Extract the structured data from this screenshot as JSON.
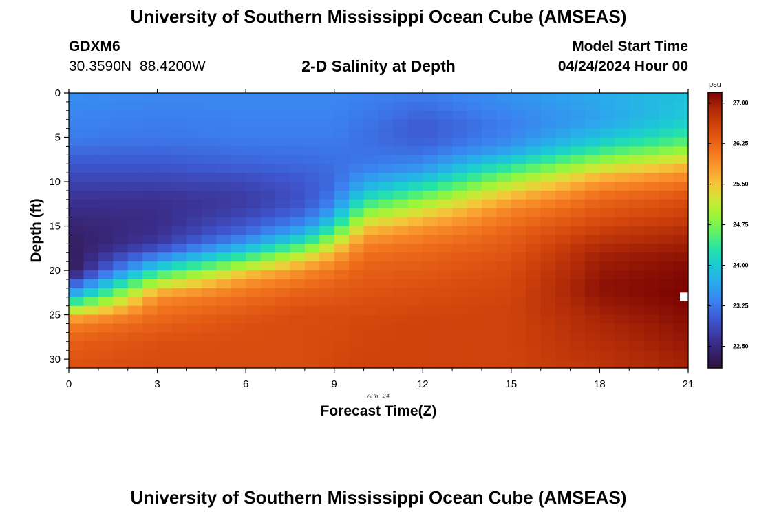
{
  "header": {
    "title": "University of Southern Mississippi Ocean Cube (AMSEAS)",
    "station_name": "GDXM6",
    "station_coords": "30.3590N  88.4200W",
    "plot_title": "2-D Salinity at Depth",
    "model_label": "Model Start Time",
    "model_time": "04/24/2024 Hour 00"
  },
  "footer": {
    "title": "University of Southern Mississippi Ocean Cube (AMSEAS)"
  },
  "chart_data": {
    "type": "heatmap",
    "title": "2-D Salinity at Depth",
    "xlabel": "Forecast Time(Z)",
    "ylabel": "Depth (ft)",
    "x_range": [
      0,
      21
    ],
    "y_range": [
      0,
      31
    ],
    "x_ticks": [
      0,
      3,
      6,
      9,
      12,
      15,
      18,
      21
    ],
    "x_tick_labels": [
      "0",
      "3",
      "6",
      "9",
      "12",
      "15",
      "18",
      "21"
    ],
    "y_ticks": [
      0,
      5,
      10,
      15,
      20,
      25,
      30
    ],
    "y_tick_labels": [
      "0",
      "5",
      "10",
      "15",
      "20",
      "25",
      "30"
    ],
    "date_label": "APR 24",
    "colorbar": {
      "unit": "psu",
      "range": [
        22.1,
        27.2
      ],
      "tick_values": [
        22.5,
        23.25,
        24.0,
        24.75,
        25.5,
        26.25,
        27.0
      ],
      "tick_labels": [
        "22.50",
        "23.25",
        "24.00",
        "24.75",
        "25.50",
        "26.25",
        "27.00"
      ]
    },
    "time_grid_step_hours": 0.5,
    "depth_grid_step_ft": 1,
    "control_points": {
      "times": [
        0,
        3,
        6,
        8,
        9,
        10,
        12,
        15,
        18,
        21
      ],
      "series": [
        {
          "time": 0,
          "profile": [
            [
              0,
              23.45
            ],
            [
              5,
              23.3
            ],
            [
              8,
              23.0
            ],
            [
              10,
              22.8
            ],
            [
              13,
              22.55
            ],
            [
              16,
              22.35
            ],
            [
              20,
              22.2
            ],
            [
              22,
              23.2
            ],
            [
              23,
              23.8
            ],
            [
              24,
              24.6
            ],
            [
              25,
              25.5
            ],
            [
              26,
              26.0
            ],
            [
              28,
              26.3
            ],
            [
              31,
              26.45
            ]
          ]
        },
        {
          "time": 3,
          "profile": [
            [
              0,
              23.4
            ],
            [
              5,
              23.25
            ],
            [
              8,
              23.0
            ],
            [
              10,
              22.8
            ],
            [
              12,
              22.6
            ],
            [
              15,
              22.55
            ],
            [
              17,
              22.7
            ],
            [
              18,
              23.1
            ],
            [
              19,
              23.6
            ],
            [
              20,
              24.2
            ],
            [
              21,
              24.8
            ],
            [
              22,
              25.4
            ],
            [
              23,
              25.9
            ],
            [
              25,
              26.2
            ],
            [
              28,
              26.45
            ],
            [
              31,
              26.5
            ]
          ]
        },
        {
          "time": 6,
          "profile": [
            [
              0,
              23.4
            ],
            [
              5,
              23.3
            ],
            [
              8,
              23.1
            ],
            [
              10,
              22.85
            ],
            [
              12,
              22.7
            ],
            [
              14,
              22.85
            ],
            [
              16,
              23.2
            ],
            [
              17,
              23.6
            ],
            [
              18,
              24.1
            ],
            [
              19,
              24.7
            ],
            [
              20,
              25.3
            ],
            [
              21,
              25.8
            ],
            [
              23,
              26.2
            ],
            [
              26,
              26.45
            ],
            [
              31,
              26.5
            ]
          ]
        },
        {
          "time": 8,
          "profile": [
            [
              0,
              23.4
            ],
            [
              5,
              23.3
            ],
            [
              8,
              23.15
            ],
            [
              10,
              23.0
            ],
            [
              12,
              22.95
            ],
            [
              14,
              23.2
            ],
            [
              15,
              23.5
            ],
            [
              16,
              23.9
            ],
            [
              17,
              24.4
            ],
            [
              18,
              25.0
            ],
            [
              19,
              25.5
            ],
            [
              20,
              25.9
            ],
            [
              22,
              26.25
            ],
            [
              25,
              26.5
            ],
            [
              31,
              26.5
            ]
          ]
        },
        {
          "time": 9,
          "profile": [
            [
              0,
              23.4
            ],
            [
              5,
              23.3
            ],
            [
              8,
              23.2
            ],
            [
              10,
              23.15
            ],
            [
              12,
              23.3
            ],
            [
              13,
              23.5
            ],
            [
              14,
              23.8
            ],
            [
              15,
              24.2
            ],
            [
              16,
              24.7
            ],
            [
              17,
              25.2
            ],
            [
              18,
              25.6
            ],
            [
              19,
              25.9
            ],
            [
              21,
              26.25
            ],
            [
              25,
              26.5
            ],
            [
              31,
              26.55
            ]
          ]
        },
        {
          "time": 10,
          "profile": [
            [
              0,
              23.35
            ],
            [
              5,
              23.2
            ],
            [
              8,
              23.25
            ],
            [
              10,
              23.6
            ],
            [
              11,
              23.9
            ],
            [
              12,
              24.2
            ],
            [
              13,
              24.6
            ],
            [
              14,
              25.0
            ],
            [
              15,
              25.4
            ],
            [
              16,
              25.75
            ],
            [
              17,
              26.0
            ],
            [
              19,
              26.25
            ],
            [
              22,
              26.4
            ],
            [
              26,
              26.55
            ],
            [
              31,
              26.6
            ]
          ]
        },
        {
          "time": 12,
          "profile": [
            [
              0,
              23.3
            ],
            [
              4,
              23.0
            ],
            [
              6,
              23.1
            ],
            [
              8,
              23.4
            ],
            [
              9,
              23.65
            ],
            [
              10,
              24.0
            ],
            [
              11,
              24.4
            ],
            [
              12,
              24.8
            ],
            [
              13,
              25.2
            ],
            [
              14,
              25.5
            ],
            [
              15,
              25.8
            ],
            [
              16,
              26.0
            ],
            [
              18,
              26.25
            ],
            [
              22,
              26.45
            ],
            [
              26,
              26.6
            ],
            [
              31,
              26.6
            ]
          ]
        },
        {
          "time": 15,
          "profile": [
            [
              0,
              23.5
            ],
            [
              4,
              23.3
            ],
            [
              6,
              23.5
            ],
            [
              7,
              23.8
            ],
            [
              8,
              24.2
            ],
            [
              9,
              24.6
            ],
            [
              10,
              25.0
            ],
            [
              11,
              25.4
            ],
            [
              12,
              25.7
            ],
            [
              13,
              25.95
            ],
            [
              14,
              26.1
            ],
            [
              16,
              26.3
            ],
            [
              20,
              26.5
            ],
            [
              24,
              26.6
            ],
            [
              31,
              26.6
            ]
          ]
        },
        {
          "time": 18,
          "profile": [
            [
              0,
              23.7
            ],
            [
              3,
              23.6
            ],
            [
              5,
              23.9
            ],
            [
              6,
              24.2
            ],
            [
              7,
              24.6
            ],
            [
              8,
              25.0
            ],
            [
              9,
              25.45
            ],
            [
              10,
              25.8
            ],
            [
              11,
              26.05
            ],
            [
              12,
              26.25
            ],
            [
              14,
              26.45
            ],
            [
              16,
              26.7
            ],
            [
              18,
              26.95
            ],
            [
              22,
              27.1
            ],
            [
              26,
              26.9
            ],
            [
              31,
              26.75
            ]
          ]
        },
        {
          "time": 21,
          "profile": [
            [
              0,
              23.9
            ],
            [
              3,
              24.0
            ],
            [
              5,
              24.4
            ],
            [
              6,
              24.75
            ],
            [
              7,
              25.1
            ],
            [
              8,
              25.5
            ],
            [
              9,
              25.85
            ],
            [
              10,
              26.1
            ],
            [
              11,
              26.3
            ],
            [
              12,
              26.45
            ],
            [
              14,
              26.65
            ],
            [
              16,
              26.9
            ],
            [
              18,
              27.05
            ],
            [
              20,
              27.15
            ],
            [
              23,
              27.2
            ],
            [
              26,
              27.1
            ],
            [
              31,
              26.95
            ]
          ]
        }
      ]
    },
    "color_scale": [
      {
        "value": 22.1,
        "color": "#30123b"
      },
      {
        "value": 22.6,
        "color": "#3b2f8f"
      },
      {
        "value": 23.0,
        "color": "#3e57d0"
      },
      {
        "value": 23.35,
        "color": "#3b83f0"
      },
      {
        "value": 23.7,
        "color": "#29aceb"
      },
      {
        "value": 24.0,
        "color": "#1ccbd4"
      },
      {
        "value": 24.3,
        "color": "#26e3a6"
      },
      {
        "value": 24.6,
        "color": "#5ef16a"
      },
      {
        "value": 24.9,
        "color": "#9af53a"
      },
      {
        "value": 25.2,
        "color": "#cde834"
      },
      {
        "value": 25.5,
        "color": "#f5c63a"
      },
      {
        "value": 25.8,
        "color": "#fa9b30"
      },
      {
        "value": 26.1,
        "color": "#f2761f"
      },
      {
        "value": 26.35,
        "color": "#e35a14"
      },
      {
        "value": 26.6,
        "color": "#cf420b"
      },
      {
        "value": 26.9,
        "color": "#ad2807"
      },
      {
        "value": 27.2,
        "color": "#7a0403"
      }
    ]
  }
}
